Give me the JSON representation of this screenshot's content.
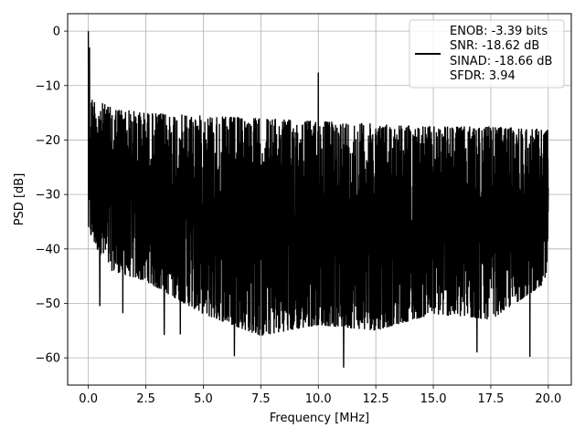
{
  "chart_data": {
    "type": "line",
    "title": "",
    "xlabel": "Frequency [MHz]",
    "ylabel": "PSD [dB]",
    "xlim": [
      -0.9,
      21.0
    ],
    "ylim": [
      -65,
      3.2
    ],
    "xticks": [
      0.0,
      2.5,
      5.0,
      7.5,
      10.0,
      12.5,
      15.0,
      17.5,
      20.0
    ],
    "xtick_labels": [
      "0.0",
      "2.5",
      "5.0",
      "7.5",
      "10.0",
      "12.5",
      "15.0",
      "17.5",
      "20.0"
    ],
    "yticks": [
      0,
      -10,
      -20,
      -30,
      -40,
      -50,
      -60
    ],
    "ytick_labels": [
      "0",
      "−10",
      "−20",
      "−30",
      "−40",
      "−50",
      "−60"
    ],
    "grid": true,
    "legend_position": "top-right",
    "legend_entries": [
      "ENOB: -3.39 bits",
      "SNR: -18.62 dB",
      "SINAD: -18.66 dB",
      "SFDR: 3.94"
    ],
    "series": [
      {
        "color": "#000000",
        "noise_envelope": {
          "x": [
            0.0,
            0.5,
            1.0,
            2.5,
            5.0,
            7.5,
            10.0,
            12.5,
            15.0,
            17.5,
            20.0
          ],
          "upper": [
            -12,
            -13,
            -14,
            -15,
            -15.5,
            -16,
            -16.5,
            -17,
            -17.5,
            -17.5,
            -18
          ],
          "lower": [
            -37,
            -41,
            -44,
            -46,
            -52,
            -56,
            -54,
            -55,
            -52,
            -53,
            -46
          ]
        },
        "peaks": [
          {
            "x": 0.0,
            "y": 0.0
          },
          {
            "x": 0.05,
            "y": -3.0
          },
          {
            "x": 10.0,
            "y": -7.6
          },
          {
            "x": 6.35,
            "y": -59.7
          },
          {
            "x": 11.1,
            "y": -61.8
          },
          {
            "x": 19.2,
            "y": -59.8
          },
          {
            "x": 16.9,
            "y": -59.0
          },
          {
            "x": 4.0,
            "y": -55.7
          },
          {
            "x": 3.3,
            "y": -55.8
          },
          {
            "x": 0.5,
            "y": -50.5
          },
          {
            "x": 1.5,
            "y": -51.8
          }
        ]
      }
    ]
  }
}
